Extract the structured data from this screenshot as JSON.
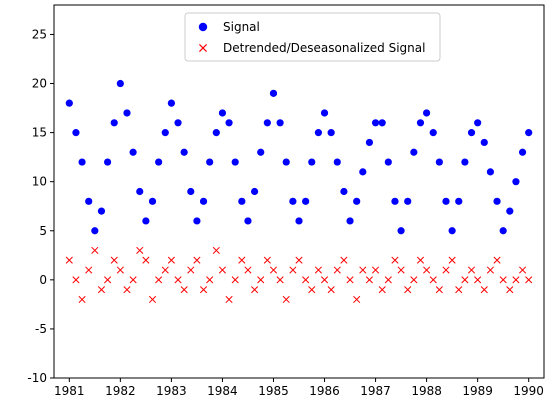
{
  "chart_data": {
    "type": "scatter",
    "title": "",
    "xlabel": "",
    "ylabel": "",
    "xlim": [
      1980.7,
      1990.3
    ],
    "ylim": [
      -10,
      28
    ],
    "x_ticks": [
      1981,
      1982,
      1983,
      1984,
      1985,
      1986,
      1987,
      1988,
      1989,
      1990
    ],
    "y_ticks": [
      -10,
      -5,
      0,
      5,
      10,
      15,
      20,
      25
    ],
    "grid": false,
    "legend": {
      "position": "top-center"
    },
    "series": [
      {
        "name": "Signal",
        "marker": "circle",
        "color": "#0000ff",
        "x": [
          1981.0,
          1981.13,
          1981.25,
          1981.38,
          1981.5,
          1981.63,
          1981.75,
          1981.88,
          1982.0,
          1982.13,
          1982.25,
          1982.38,
          1982.5,
          1982.63,
          1982.75,
          1982.88,
          1983.0,
          1983.13,
          1983.25,
          1983.38,
          1983.5,
          1983.63,
          1983.75,
          1983.88,
          1984.0,
          1984.13,
          1984.25,
          1984.38,
          1984.5,
          1984.63,
          1984.75,
          1984.88,
          1985.0,
          1985.13,
          1985.25,
          1985.38,
          1985.5,
          1985.63,
          1985.75,
          1985.88,
          1986.0,
          1986.13,
          1986.25,
          1986.38,
          1986.5,
          1986.63,
          1986.75,
          1986.88,
          1987.0,
          1987.13,
          1987.25,
          1987.38,
          1987.5,
          1987.63,
          1987.75,
          1987.88,
          1988.0,
          1988.13,
          1988.25,
          1988.38,
          1988.5,
          1988.63,
          1988.75,
          1988.88,
          1989.0,
          1989.13,
          1989.25,
          1989.38,
          1989.5,
          1989.63,
          1989.75,
          1989.88,
          1990.0
        ],
        "y": [
          18,
          15,
          12,
          8,
          5,
          7,
          12,
          16,
          20,
          17,
          13,
          9,
          6,
          8,
          12,
          15,
          18,
          16,
          13,
          9,
          6,
          8,
          12,
          15,
          17,
          16,
          12,
          8,
          6,
          9,
          13,
          16,
          19,
          16,
          12,
          8,
          6,
          8,
          12,
          15,
          17,
          15,
          12,
          9,
          6,
          8,
          11,
          14,
          16,
          16,
          12,
          8,
          5,
          8,
          13,
          16,
          17,
          15,
          12,
          8,
          5,
          8,
          12,
          15,
          16,
          14,
          11,
          8,
          5,
          7,
          10,
          13,
          15
        ]
      },
      {
        "name": "Detrended/Deseasonalized Signal",
        "marker": "x",
        "color": "#ff0000",
        "x": [
          1981.0,
          1981.13,
          1981.25,
          1981.38,
          1981.5,
          1981.63,
          1981.75,
          1981.88,
          1982.0,
          1982.13,
          1982.25,
          1982.38,
          1982.5,
          1982.63,
          1982.75,
          1982.88,
          1983.0,
          1983.13,
          1983.25,
          1983.38,
          1983.5,
          1983.63,
          1983.75,
          1983.88,
          1984.0,
          1984.13,
          1984.25,
          1984.38,
          1984.5,
          1984.63,
          1984.75,
          1984.88,
          1985.0,
          1985.13,
          1985.25,
          1985.38,
          1985.5,
          1985.63,
          1985.75,
          1985.88,
          1986.0,
          1986.13,
          1986.25,
          1986.38,
          1986.5,
          1986.63,
          1986.75,
          1986.88,
          1987.0,
          1987.13,
          1987.25,
          1987.38,
          1987.5,
          1987.63,
          1987.75,
          1987.88,
          1988.0,
          1988.13,
          1988.25,
          1988.38,
          1988.5,
          1988.63,
          1988.75,
          1988.88,
          1989.0,
          1989.13,
          1989.25,
          1989.38,
          1989.5,
          1989.63,
          1989.75,
          1989.88,
          1990.0
        ],
        "y": [
          2,
          0,
          -2,
          1,
          3,
          -1,
          0,
          2,
          1,
          -1,
          0,
          3,
          2,
          -2,
          0,
          1,
          2,
          0,
          -1,
          1,
          2,
          -1,
          0,
          3,
          1,
          -2,
          0,
          2,
          1,
          -1,
          0,
          2,
          1,
          0,
          -2,
          1,
          2,
          0,
          -1,
          1,
          0,
          -1,
          1,
          2,
          0,
          -2,
          1,
          0,
          1,
          -1,
          0,
          2,
          1,
          -1,
          0,
          2,
          1,
          0,
          -1,
          1,
          2,
          -1,
          0,
          1,
          0,
          -1,
          1,
          2,
          0,
          -1,
          0,
          1,
          0
        ]
      }
    ]
  }
}
